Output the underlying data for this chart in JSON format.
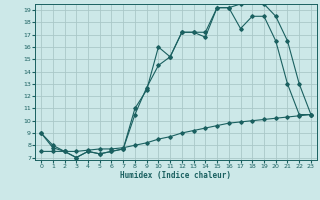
{
  "xlabel": "Humidex (Indice chaleur)",
  "bg_color": "#cce8e8",
  "grid_color": "#aac8c8",
  "line_color": "#1a6060",
  "xlim": [
    -0.5,
    23.5
  ],
  "ylim": [
    6.8,
    19.5
  ],
  "xticks": [
    0,
    1,
    2,
    3,
    4,
    5,
    6,
    7,
    8,
    9,
    10,
    11,
    12,
    13,
    14,
    15,
    16,
    17,
    18,
    19,
    20,
    21,
    22,
    23
  ],
  "yticks": [
    7,
    8,
    9,
    10,
    11,
    12,
    13,
    14,
    15,
    16,
    17,
    18,
    19
  ],
  "line1_x": [
    0,
    1,
    2,
    3,
    4,
    5,
    6,
    7,
    8,
    9,
    10,
    11,
    12,
    13,
    14,
    15,
    16,
    17,
    18,
    19,
    20,
    21,
    22,
    23
  ],
  "line1_y": [
    9.0,
    8.0,
    7.5,
    7.0,
    7.5,
    7.3,
    7.5,
    7.7,
    11.0,
    12.5,
    16.0,
    15.2,
    17.2,
    17.2,
    16.8,
    19.2,
    19.2,
    19.5,
    19.8,
    19.5,
    18.5,
    16.5,
    13.0,
    10.5
  ],
  "line2_x": [
    0,
    1,
    2,
    3,
    4,
    5,
    6,
    7,
    8,
    9,
    10,
    11,
    12,
    13,
    14,
    15,
    16,
    17,
    18,
    19,
    20,
    21,
    22,
    23
  ],
  "line2_y": [
    9.0,
    7.8,
    7.5,
    7.0,
    7.5,
    7.3,
    7.5,
    7.7,
    10.5,
    12.7,
    14.5,
    15.2,
    17.2,
    17.2,
    17.2,
    19.2,
    19.2,
    17.5,
    18.5,
    18.5,
    16.5,
    13.0,
    10.5,
    10.5
  ],
  "line3_x": [
    0,
    1,
    2,
    3,
    4,
    5,
    6,
    7,
    8,
    9,
    10,
    11,
    12,
    13,
    14,
    15,
    16,
    17,
    18,
    19,
    20,
    21,
    22,
    23
  ],
  "line3_y": [
    7.5,
    7.5,
    7.5,
    7.5,
    7.6,
    7.7,
    7.7,
    7.8,
    8.0,
    8.2,
    8.5,
    8.7,
    9.0,
    9.2,
    9.4,
    9.6,
    9.8,
    9.9,
    10.0,
    10.1,
    10.2,
    10.3,
    10.4,
    10.5
  ]
}
